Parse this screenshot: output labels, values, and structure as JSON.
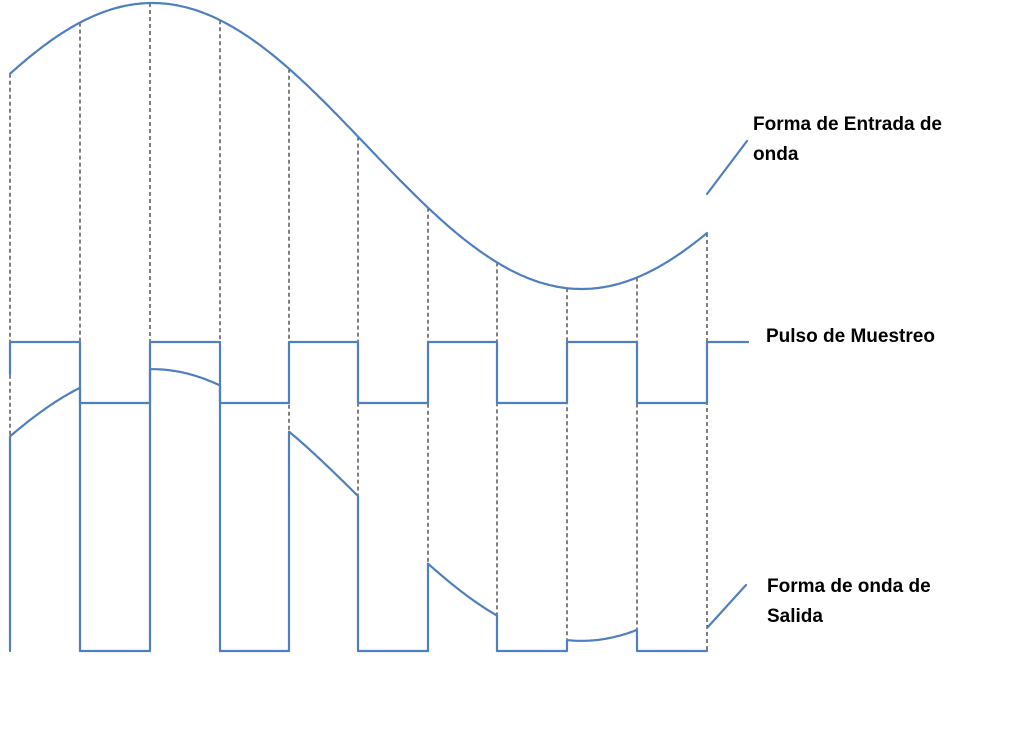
{
  "labels": {
    "input_waveform": [
      "Forma de Entrada de",
      "onda"
    ],
    "sampling_pulse": "Pulso de Muestreo",
    "output_waveform": [
      "Forma de onda de",
      "Salida"
    ]
  },
  "colors": {
    "waveform": "#4f7fbf",
    "guides": "#000000",
    "text": "#000000"
  }
}
